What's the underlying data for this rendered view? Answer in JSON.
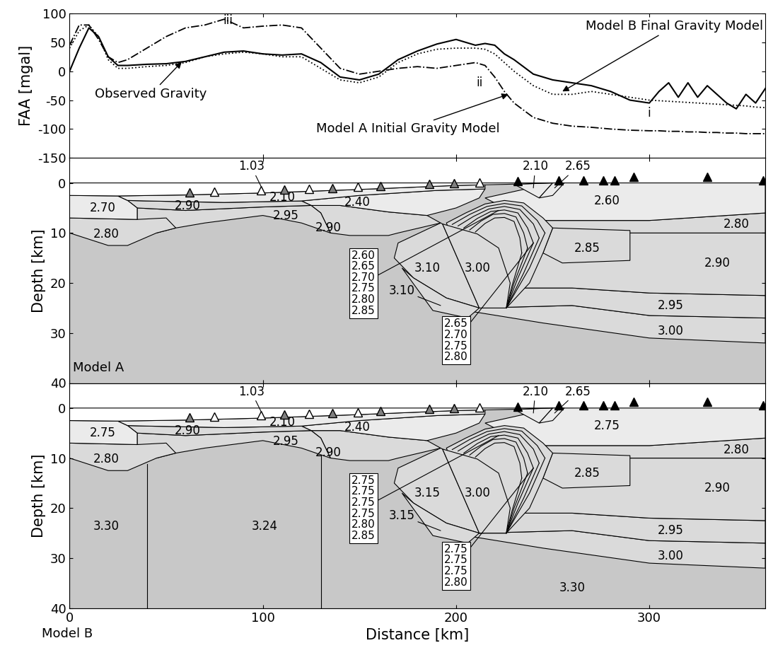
{
  "chart_data": [
    {
      "type": "line",
      "ylabel": "FAA [mgal]",
      "xlim": [
        0,
        360
      ],
      "ylim": [
        -150,
        100
      ],
      "xticks": [
        0,
        100,
        200,
        300
      ],
      "yticks": [
        -150,
        -100,
        -50,
        0,
        50,
        100
      ],
      "tick_labels": "y",
      "x": [
        0,
        5,
        10,
        15,
        20,
        25,
        30,
        40,
        50,
        60,
        70,
        80,
        90,
        100,
        110,
        120,
        130,
        140,
        150,
        160,
        170,
        180,
        190,
        200,
        210,
        215,
        220,
        225,
        230,
        240,
        250,
        260,
        270,
        280,
        290,
        300,
        305,
        310,
        315,
        320,
        325,
        330,
        335,
        340,
        345,
        350,
        355,
        360
      ],
      "series": [
        {
          "name": "Observed Gravity",
          "color": "#000000",
          "line_style": "solid",
          "label_at": [
            42,
            -40
          ],
          "arrow_to": [
            58,
            16
          ],
          "values": [
            0,
            40,
            75,
            60,
            25,
            10,
            10,
            12,
            13,
            17,
            25,
            33,
            35,
            30,
            28,
            30,
            15,
            -10,
            -15,
            -5,
            20,
            35,
            47,
            55,
            45,
            48,
            45,
            30,
            20,
            -5,
            -15,
            -20,
            -25,
            -35,
            -50,
            -55,
            -35,
            -20,
            -45,
            -20,
            -45,
            -25,
            -40,
            -55,
            -65,
            -40,
            -55,
            -30
          ]
        },
        {
          "name": "Model B Final Gravity Model",
          "color": "#000000",
          "line_style": "dotted",
          "label_at": [
            359,
            78
          ],
          "arrow_to": [
            255,
            -35
          ],
          "values": [
            40,
            70,
            80,
            60,
            20,
            5,
            5,
            8,
            10,
            15,
            25,
            30,
            33,
            30,
            25,
            25,
            5,
            -15,
            -20,
            -10,
            15,
            30,
            38,
            40,
            40,
            38,
            30,
            15,
            0,
            -25,
            -40,
            -40,
            -35,
            -40,
            -45,
            -50,
            -51,
            -52,
            -53,
            -54,
            -55,
            -56,
            -57,
            -58,
            -59,
            -60,
            -62,
            -63
          ]
        },
        {
          "name": "Model A Initial Gravity Model",
          "color": "#000000",
          "line_style": "dashdot",
          "label_at": [
            175,
            -100
          ],
          "arrow_to": [
            227,
            -40
          ],
          "values": [
            45,
            80,
            80,
            55,
            25,
            15,
            20,
            40,
            60,
            75,
            80,
            90,
            75,
            78,
            80,
            75,
            40,
            5,
            -5,
            0,
            5,
            8,
            5,
            10,
            15,
            10,
            -10,
            -35,
            -55,
            -80,
            -90,
            -95,
            -97,
            -100,
            -102,
            -103,
            -103,
            -104,
            -104,
            -105,
            -105,
            -106,
            -106,
            -107,
            -107,
            -108,
            -108,
            -108
          ]
        }
      ],
      "annotations": [
        {
          "text": "iii",
          "x": 82,
          "y": 88
        },
        {
          "text": "ii",
          "x": 212,
          "y": -20
        },
        {
          "text": "i",
          "x": 300,
          "y": -72
        }
      ]
    },
    {
      "type": "cross_section",
      "title": "Model A",
      "ylabel": "Depth [km]",
      "xlim": [
        0,
        360
      ],
      "ylim": [
        40,
        -5
      ],
      "xticks": [
        0,
        100,
        200,
        300
      ],
      "yticks": [
        0,
        10,
        20,
        30,
        40
      ],
      "tick_labels": "y",
      "region_labels": [
        null,
        "3.00",
        "2.95",
        "2.90",
        "2.80",
        "2.60",
        "2.85",
        null,
        "3.10",
        "3.10",
        "3.00",
        "2.90",
        "2.40",
        "2.95",
        "2.90",
        "2.80",
        "2.70",
        "2.10",
        "2.10",
        "2.65",
        "1.03"
      ],
      "callout_texts": [
        [
          "2.60",
          "2.65",
          "2.70",
          "2.75",
          "2.80",
          "2.85"
        ],
        [
          "2.65",
          "2.70",
          "2.75",
          "2.80"
        ]
      ]
    },
    {
      "type": "cross_section",
      "title": "Model B",
      "ylabel": "Depth [km]",
      "xlabel": "Distance [km]",
      "xlim": [
        0,
        360
      ],
      "ylim": [
        40,
        -5
      ],
      "xticks": [
        0,
        100,
        200,
        300
      ],
      "yticks": [
        0,
        10,
        20,
        30,
        40
      ],
      "region_labels": [
        "3.30",
        "3.00",
        "2.95",
        "2.90",
        "2.80",
        "2.75",
        "2.85",
        null,
        "3.15",
        "3.15",
        "3.00",
        "2.90",
        "2.40",
        "2.95",
        "2.90",
        "2.80",
        "2.75",
        "2.10",
        "2.10",
        "2.65",
        "1.03"
      ],
      "callout_texts": [
        [
          "2.75",
          "2.75",
          "2.75",
          "2.75",
          "2.80",
          "2.85"
        ],
        [
          "2.75",
          "2.75",
          "2.75",
          "2.80"
        ]
      ],
      "divides": [
        {
          "x": [
            40,
            40
          ],
          "depth": [
            11.2,
            40
          ]
        },
        {
          "x": [
            130,
            130
          ],
          "depth": [
            9.3,
            40
          ]
        }
      ],
      "extra_labels": [
        {
          "text": "3.30",
          "x": 19,
          "depth": 23.7
        },
        {
          "text": "3.24",
          "x": 101,
          "depth": 23.7
        }
      ]
    }
  ],
  "geometry": {
    "regions": [
      {
        "color": "#c8c8c8",
        "label_at": [
          260,
          36
        ],
        "x": [
          0,
          360,
          360,
          0
        ],
        "depth": [
          0,
          0,
          40,
          40
        ]
      },
      {
        "color": "#dadada",
        "label_at": [
          311,
          29.6
        ],
        "x": [
          212,
          260,
          300,
          360,
          360,
          300,
          245,
          205
        ],
        "depth": [
          25,
          24.5,
          26.5,
          27,
          32,
          31,
          28,
          25.5
        ]
      },
      {
        "color": "#dadada",
        "label_at": [
          311,
          24.5
        ],
        "x": [
          225,
          260,
          300,
          360,
          360,
          300,
          260,
          212
        ],
        "depth": [
          21,
          21,
          22,
          22.5,
          27,
          26.5,
          24.5,
          25
        ]
      },
      {
        "color": "#dadada",
        "label_at": [
          335,
          16
        ],
        "x": [
          230,
          360,
          360,
          300,
          260,
          225
        ],
        "depth": [
          10,
          10,
          22.5,
          22,
          21,
          21
        ]
      },
      {
        "color": "#dadada",
        "label_at": [
          345,
          8.3
        ],
        "x": [
          245,
          300,
          340,
          360,
          360,
          245
        ],
        "depth": [
          7.5,
          7.5,
          6.5,
          6,
          10,
          10
        ]
      },
      {
        "color": "#ebebeb",
        "label_at": [
          278,
          3.6
        ],
        "x": [
          215,
          250,
          360,
          360,
          340,
          300,
          245,
          230
        ],
        "depth": [
          3,
          0,
          0,
          6,
          6.5,
          7.5,
          7.5,
          6
        ]
      },
      {
        "color": "#dadada",
        "label_at": [
          268,
          13
        ],
        "x": [
          250,
          290,
          290,
          255,
          245
        ],
        "depth": [
          9,
          9.5,
          15.5,
          16,
          14
        ]
      },
      {
        "color": "#dadada",
        "label_at": [
          225,
          15
        ],
        "x": [
          195,
          205,
          215,
          225,
          235,
          245,
          250,
          245,
          238,
          226,
          212
        ],
        "depth": [
          8,
          6,
          4.2,
          3.5,
          4,
          7,
          9,
          14,
          20,
          25,
          25
        ]
      },
      {
        "color": "#dadada",
        "label_at": [
          185,
          17
        ],
        "x": [
          170,
          192,
          193,
          212,
          195,
          178,
          168
        ],
        "depth": [
          12,
          8,
          8.2,
          25,
          23,
          19,
          15
        ]
      },
      {
        "color": "#dadada",
        "label_at": [
          172,
          21.5
        ],
        "leader_to": [
          192,
          24.5
        ],
        "x": [
          172,
          178,
          195,
          212,
          206,
          188
        ],
        "depth": [
          17,
          19,
          23,
          25,
          27,
          25.5
        ]
      },
      {
        "color": "#dadada",
        "label_at": [
          211,
          17
        ],
        "x": [
          193,
          211,
          222,
          228,
          226,
          212
        ],
        "depth": [
          8.2,
          10.2,
          13,
          20,
          25,
          25
        ]
      },
      {
        "color": "#dadada",
        "label_at": [
          134,
          8.9
        ],
        "x": [
          125,
          140,
          165,
          185,
          192,
          170,
          165,
          145,
          135,
          130
        ],
        "depth": [
          4.5,
          4.5,
          5.8,
          6.5,
          8,
          10,
          10.5,
          10.5,
          10,
          6
        ]
      },
      {
        "color": "#ebebeb",
        "label_at": [
          149,
          3.9
        ],
        "x": [
          120,
          150,
          190,
          215,
          212,
          200,
          185,
          165,
          140,
          125
        ],
        "depth": [
          3.6,
          2.5,
          1.5,
          1.2,
          3,
          5,
          6.5,
          5.8,
          4.5,
          4.5
        ]
      },
      {
        "color": "#dadada",
        "label_at": [
          112,
          6.6
        ],
        "x": [
          35,
          60,
          100,
          125,
          130,
          135,
          120,
          100,
          70,
          55,
          45,
          35
        ],
        "depth": [
          5,
          5.5,
          4.8,
          4.5,
          6,
          10,
          8,
          6.5,
          8,
          9,
          10,
          7.3
        ]
      },
      {
        "color": "#dadada",
        "label_at": [
          61,
          4.6
        ],
        "x": [
          30,
          40,
          80,
          120,
          125,
          100,
          60,
          35
        ],
        "depth": [
          3.5,
          3.6,
          3.9,
          3.6,
          4.5,
          4.8,
          5.5,
          5
        ]
      },
      {
        "color": "#dadada",
        "label_at": [
          19,
          10.2
        ],
        "x": [
          0,
          35,
          50,
          55,
          45,
          30,
          20,
          0
        ],
        "depth": [
          7,
          7.3,
          7,
          9,
          10,
          12.5,
          12.5,
          10
        ]
      },
      {
        "color": "#ebebeb",
        "label_at": [
          17,
          5.0
        ],
        "x": [
          0,
          25,
          30,
          35,
          35,
          0
        ],
        "depth": [
          2.5,
          2.6,
          3.5,
          5,
          7.3,
          7
        ]
      },
      {
        "color": "#ebebeb",
        "label_at": [
          110,
          2.9
        ],
        "x": [
          25,
          60,
          100,
          150,
          200,
          215,
          215,
          190,
          150,
          120,
          80,
          40,
          30
        ],
        "depth": [
          2.6,
          2.4,
          2.0,
          1.3,
          0.5,
          0.35,
          1.2,
          1.5,
          2.5,
          3.6,
          3.9,
          3.6,
          3.5
        ]
      },
      {
        "color": "#ebebeb",
        "label_at": [
          241,
          -3.3
        ],
        "leader_to": [
          240,
          1.0
        ],
        "x": [
          230,
          250,
          243
        ],
        "depth": [
          0.25,
          0,
          3
        ]
      },
      {
        "color": "#ebebeb",
        "label_at": [
          263,
          -3.3
        ],
        "leader_to": [
          251,
          1.0
        ],
        "x": [
          243,
          250,
          256,
          250
        ],
        "depth": [
          3,
          0,
          0,
          2.5
        ]
      },
      {
        "color": "#ffffff",
        "label_at": [
          94,
          -3.3
        ],
        "leader_to": [
          100,
          1.4
        ],
        "x": [
          0,
          250,
          235,
          200,
          150,
          100,
          60,
          25,
          0
        ],
        "depth": [
          0,
          0,
          0.2,
          0.5,
          1.3,
          2.0,
          2.4,
          2.6,
          2.5
        ]
      }
    ],
    "fold_lines": [
      {
        "x": [
          198,
          207,
          216,
          225,
          234,
          242,
          246
        ],
        "depth": [
          8.3,
          6.3,
          4.7,
          4.1,
          4.6,
          7.5,
          10
        ]
      },
      {
        "x": [
          201,
          209,
          217,
          225,
          233,
          240,
          243
        ],
        "depth": [
          8.6,
          6.7,
          5.2,
          4.7,
          5.3,
          8.2,
          11
        ]
      },
      {
        "x": [
          204,
          211,
          218,
          225,
          232,
          237,
          240
        ],
        "depth": [
          9,
          7.1,
          5.7,
          5.4,
          6,
          9,
          12
        ]
      },
      {
        "x": [
          207,
          213,
          219,
          225,
          231,
          235,
          237
        ],
        "depth": [
          9.4,
          7.6,
          6.3,
          6.1,
          6.8,
          10,
          13
        ]
      },
      {
        "x": [
          210,
          215,
          220,
          225,
          230,
          233,
          234
        ],
        "depth": [
          9.8,
          8.1,
          7,
          6.9,
          7.7,
          11,
          14
        ]
      },
      {
        "x": [
          246,
          238,
          226
        ],
        "depth": [
          10,
          17,
          25
        ]
      },
      {
        "x": [
          243,
          235,
          226
        ],
        "depth": [
          11,
          18,
          25
        ]
      },
      {
        "x": [
          240,
          232,
          226
        ],
        "depth": [
          12,
          19,
          25
        ]
      },
      {
        "x": [
          237,
          230,
          226
        ],
        "depth": [
          13,
          20,
          25
        ]
      },
      {
        "x": [
          234,
          229,
          226
        ],
        "depth": [
          14,
          20.5,
          25
        ]
      }
    ],
    "callouts": [
      {
        "at": [
          152,
          20
        ],
        "to": [
          222,
          5.5
        ]
      },
      {
        "at": [
          200,
          31.5
        ],
        "to": [
          240,
          12
        ]
      }
    ],
    "stations": [
      {
        "color": "#808080",
        "marker": "triangle",
        "x": [
          62,
          111,
          136,
          161,
          186,
          199
        ],
        "depth": [
          1.9,
          1.35,
          1.0,
          0.6,
          0.2,
          0.0
        ]
      },
      {
        "color": "#ffffff",
        "marker": "triangle",
        "x": [
          75,
          99,
          124,
          149,
          212
        ],
        "depth": [
          1.75,
          1.5,
          1.15,
          0.8,
          -0.1
        ]
      },
      {
        "color": "#000000",
        "marker": "triangle",
        "x": [
          232,
          253,
          266,
          276,
          282,
          292,
          330,
          359
        ],
        "depth": [
          -0.3,
          -0.5,
          -0.5,
          -0.5,
          -0.5,
          -1.2,
          -1.2,
          -0.5
        ]
      }
    ]
  }
}
